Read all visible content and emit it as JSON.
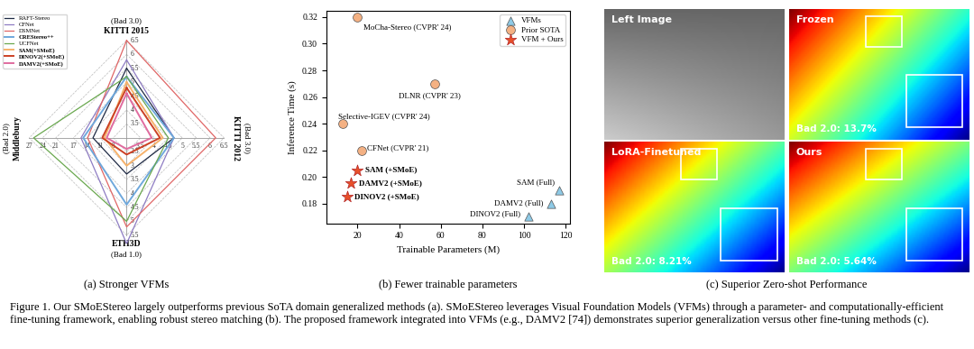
{
  "chart_data": [
    {
      "type": "radar",
      "subtitle": "(a) Stronger VFMs",
      "legend": "upper left",
      "axes": [
        {
          "name": "KITTI 2015",
          "metric": "(Bad 3.0)",
          "lim": [
            3,
            6.5
          ],
          "ticks": [
            3.5,
            4,
            4.5,
            5,
            5.5,
            6,
            6.5
          ]
        },
        {
          "name": "KITTI 2012",
          "metric": "(Bad 3.0)",
          "lim": [
            3,
            6.5
          ],
          "ticks": [
            3.5,
            4,
            4.5,
            5,
            5.5,
            6,
            6.5
          ]
        },
        {
          "name": "ETH3D",
          "metric": "(Bad 1.0)",
          "lim": [
            2,
            5.5
          ],
          "ticks": [
            2.5,
            3,
            3.5,
            4,
            4.5,
            5,
            5.5
          ]
        },
        {
          "name": "Middlebury",
          "metric": "(Bad 2.0)",
          "lim": [
            5,
            27
          ],
          "ticks": [
            8,
            11,
            14,
            17,
            21,
            24,
            27
          ]
        }
      ],
      "series": [
        {
          "name": "RAFT-Stereo",
          "color": "#1f2a44",
          "values": [
            5.5,
            4.7,
            3.3,
            12.6
          ]
        },
        {
          "name": "CFNet",
          "color": "#8e7cc3",
          "values": [
            5.8,
            4.7,
            5.8,
            15.3
          ]
        },
        {
          "name": "DSMNet",
          "color": "#e06666",
          "values": [
            6.5,
            6.2,
            5.2,
            13.8
          ]
        },
        {
          "name": "CREStereo++",
          "color": "#6fa8dc",
          "values": [
            5.2,
            4.7,
            4.4,
            14.8
          ]
        },
        {
          "name": "UCFNet",
          "color": "#6aa84f",
          "values": [
            5.2,
            4.5,
            5.0,
            26.0
          ]
        },
        {
          "name": "SAM(+SMoE)",
          "color": "#f6b26b",
          "values": [
            5.0,
            4.3,
            3.0,
            10.0
          ]
        },
        {
          "name": "DINOV2(+SMoE)",
          "color": "#cc4125",
          "values": [
            4.8,
            4.2,
            2.6,
            10.5
          ]
        },
        {
          "name": "DAMV2(+SMoE)",
          "color": "#e06c9f",
          "values": [
            4.6,
            3.9,
            2.4,
            9.5
          ]
        }
      ]
    },
    {
      "type": "scatter",
      "subtitle": "(b) Fewer trainable parameters",
      "x_label": "Trainable Parameters (M)",
      "y_label": "Inference Time (s)",
      "xlim": [
        5,
        122
      ],
      "xticks": [
        20,
        40,
        60,
        80,
        100,
        120
      ],
      "ylim": [
        0.165,
        0.325
      ],
      "yticks": [
        0.18,
        {
          "value": 0.2,
          "label": "0.20"
        },
        0.22,
        0.24,
        0.26,
        0.28,
        {
          "value": 0.3,
          "label": "0.30"
        },
        0.32
      ],
      "legend": "upper right",
      "series": [
        {
          "name": "VFMs",
          "color": "#8ecae6",
          "marker": "triangle",
          "x": [
            117,
            113,
            102
          ],
          "y": [
            0.19,
            0.18,
            0.17
          ],
          "labels": [
            "SAM (Full)",
            "DAMV2 (Full)",
            "DINOV2 (Full)"
          ]
        },
        {
          "name": "Prior SOTA",
          "color": "#f4b183",
          "marker": "circle",
          "x": [
            20,
            57,
            13,
            22
          ],
          "y": [
            0.32,
            0.27,
            0.24,
            0.22
          ],
          "labels": [
            "MoCha-Stereo (CVPR' 24)",
            "DLNR (CVPR' 23)",
            "Selective-IGEV (CVPR' 24)",
            "CFNet (CVPR' 21)"
          ]
        },
        {
          "name": "VFM + Ours",
          "color": "#e8502a",
          "marker": "star",
          "x": [
            20,
            17,
            15
          ],
          "y": [
            0.205,
            0.195,
            0.185
          ],
          "labels": [
            "SAM (+SMoE)",
            "DAMV2 (+SMoE)",
            "DINOV2 (+SMoE)"
          ]
        }
      ]
    }
  ],
  "panel_c": {
    "subtitle": "(c) Superior Zero-shot Performance",
    "images": [
      {
        "title": "Left Image"
      },
      {
        "title": "Frozen",
        "score": "Bad 2.0: 13.7%"
      },
      {
        "title": "LoRA-Finetuned",
        "score": "Bad 2.0: 8.21%"
      },
      {
        "title": "Ours",
        "score": "Bad 2.0: 5.64%"
      }
    ]
  },
  "caption": "Figure 1. Our SMoEStereo largely outperforms previous SoTA domain generalized methods (a). SMoEStereo leverages Visual Foundation Models (VFMs) through a parameter- and computationally-efficient fine-tuning framework, enabling robust stereo matching (b). The proposed framework integrated into VFMs (e.g., DAMV2 [74]) demonstrates superior generalization versus other fine-tuning methods (c)."
}
